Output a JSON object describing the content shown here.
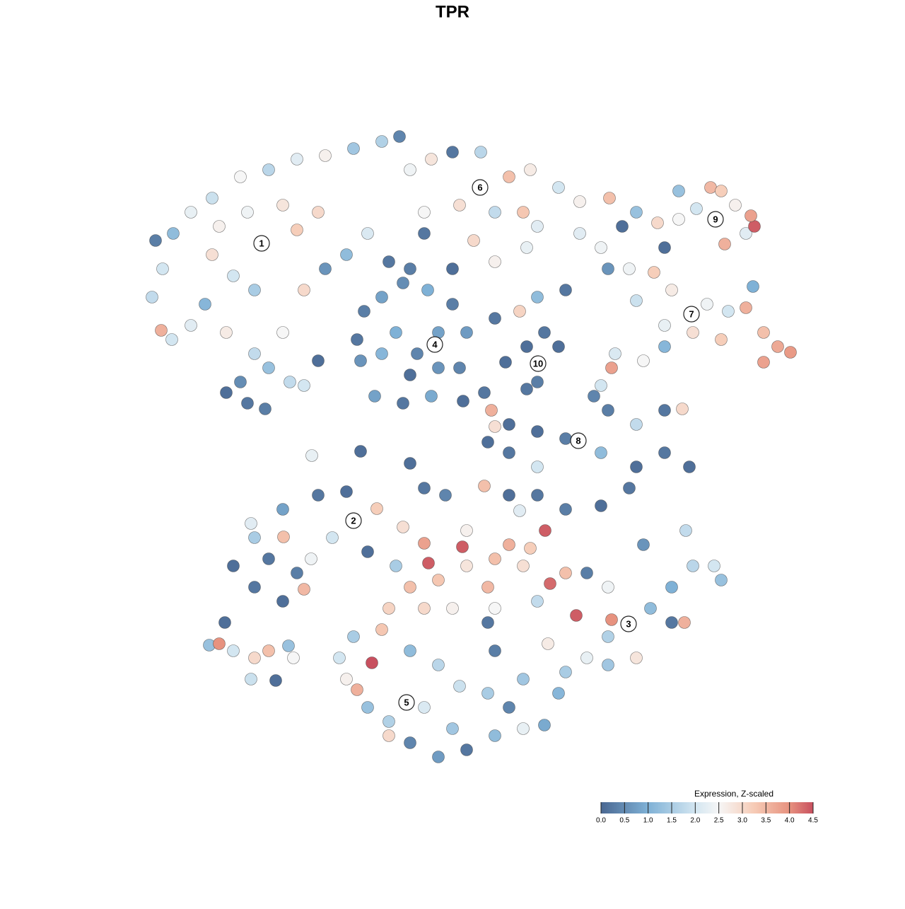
{
  "chart_data": {
    "type": "scatter",
    "title": "TPR",
    "x": [
      21.5,
      23.0,
      24.5,
      27.0,
      30.0,
      34.0,
      38.0,
      42.0,
      46.0,
      50.0,
      54.0,
      56.5,
      31.0,
      35.0,
      40.0,
      45.0,
      42.0,
      30.0,
      33.0,
      36.0,
      29.0,
      27.0,
      32.0,
      36.0,
      40.0,
      43.0,
      46.0,
      49.0,
      52.0,
      22.0,
      22.8,
      24.3,
      32.0,
      35.0,
      37.5,
      34.0,
      41.0,
      43.0,
      38.0,
      45.0,
      58,
      61,
      64,
      68,
      72,
      75,
      79,
      82,
      60,
      65,
      70,
      74,
      76,
      60,
      67,
      70,
      74.5,
      55,
      58,
      64,
      86.2,
      82,
      85,
      51.5,
      54,
      57,
      60.5,
      64,
      66,
      65,
      61,
      57,
      53,
      51,
      50.5,
      56,
      59,
      62,
      58,
      54,
      62,
      68.5,
      69.5,
      70,
      65.5,
      70,
      73.5,
      76,
      80,
      74.5,
      77,
      79,
      76,
      74.5,
      71.5,
      88,
      90,
      93,
      96,
      98.5,
      100.5,
      102,
      104,
      105.5,
      106.7,
      106.2,
      102.5,
      106.5,
      94,
      96,
      86,
      89,
      92.5,
      95,
      100,
      103,
      105.5,
      108,
      110,
      111.8,
      108,
      102,
      98,
      94,
      90,
      87,
      91,
      94,
      86.5,
      85,
      69,
      72,
      76,
      80,
      84,
      86,
      90,
      94,
      96.5,
      90,
      94,
      97.5,
      89,
      76,
      85,
      72,
      60,
      63,
      68.5,
      72,
      76,
      80,
      85,
      58,
      51,
      44.1,
      73.5,
      33,
      36,
      40,
      42,
      38,
      43,
      36,
      40,
      45,
      49,
      50,
      52,
      47,
      40.1,
      53.3,
      35.5,
      44,
      57,
      60,
      60.6,
      65.4,
      77.1,
      77.8,
      81.5,
      58,
      62,
      66,
      70,
      74,
      69,
      72,
      75,
      64,
      60,
      55,
      70,
      76,
      80,
      56,
      52.6,
      54,
      66,
      83,
      86,
      88.9,
      92,
      95,
      98,
      101,
      102,
      97,
      91,
      95,
      86,
      83,
      80,
      79,
      86,
      90,
      96.8,
      86.5,
      77.5,
      50,
      48,
      49,
      50.5,
      52,
      55,
      58,
      62,
      66,
      70,
      74,
      77,
      72,
      69,
      65,
      62,
      58,
      60,
      64,
      55,
      70,
      69,
      74,
      29.6,
      31,
      33,
      36,
      38,
      35.5,
      39,
      41.5,
      40.8,
      31.8
    ],
    "y": [
      67.0,
      71.0,
      76.0,
      79.0,
      81.0,
      84.0,
      85.0,
      86.5,
      87.0,
      88.0,
      89.0,
      89.7,
      77.0,
      79.0,
      80.0,
      79.0,
      76.5,
      73.0,
      70.0,
      68.0,
      66.0,
      63.0,
      62.0,
      59.0,
      62.0,
      68.0,
      71.0,
      73.0,
      76.0,
      75.0,
      62.3,
      61.0,
      53.5,
      52.0,
      51.2,
      55.0,
      55.0,
      54.5,
      57.0,
      58.0,
      85,
      86.5,
      87.5,
      87.5,
      84,
      85,
      82.5,
      80.5,
      79,
      80,
      79,
      79,
      77,
      76,
      75,
      72,
      74,
      72,
      71,
      71,
      81,
      76,
      74,
      65,
      67,
      69,
      68,
      66,
      62,
      57,
      53,
      52,
      53,
      58,
      61,
      62,
      59,
      62,
      56,
      59,
      57,
      53.5,
      51,
      48.7,
      52.3,
      64,
      65,
      67,
      68,
      60,
      62,
      60,
      55,
      54,
      57.8,
      77,
      79,
      77.5,
      78,
      79.5,
      82.5,
      82,
      80,
      76,
      77,
      78.5,
      74.5,
      68.5,
      74,
      82,
      71,
      71,
      70.5,
      68,
      66,
      65,
      65.5,
      62,
      60,
      59.2,
      57.8,
      61,
      62,
      63,
      66.5,
      59,
      58,
      60,
      57,
      54.5,
      46.5,
      45,
      48,
      47,
      53,
      51,
      49,
      51,
      51.2,
      43,
      45,
      43,
      40,
      43,
      45,
      49,
      40,
      39,
      40.3,
      39,
      39,
      37,
      37.5,
      43.5,
      45.2,
      44.6,
      36.8,
      29,
      26,
      24,
      28,
      30,
      25.7,
      33,
      37,
      39,
      39.5,
      35.4,
      31,
      33,
      33.1,
      37.1,
      35,
      30,
      34.5,
      32.2,
      29.4,
      31.7,
      34,
      26.5,
      22,
      26,
      27,
      29,
      30,
      29,
      26,
      32,
      31.5,
      23,
      23,
      23,
      23,
      24,
      28,
      29,
      15.3,
      20,
      34,
      28,
      26,
      20.8,
      23,
      26,
      29,
      29,
      27,
      34,
      32,
      21,
      19,
      16,
      14,
      11,
      15,
      16,
      21,
      21.4,
      18,
      19,
      16,
      13,
      11.5,
      9,
      7,
      4,
      2,
      3,
      5,
      6,
      6.5,
      9,
      11,
      12,
      15,
      17,
      9,
      6,
      5,
      17,
      21,
      13,
      17.8,
      18,
      17,
      16,
      17,
      13,
      12.8,
      16,
      17.7,
      21
    ],
    "values": [
      1.8,
      2.0,
      1.2,
      2.3,
      1.9,
      2.5,
      1.7,
      2.2,
      2.6,
      1.4,
      1.6,
      0.4,
      2.6,
      2.4,
      2.8,
      3.0,
      3.2,
      2.9,
      2.0,
      1.5,
      1.1,
      2.2,
      2.7,
      1.8,
      2.5,
      3.0,
      0.6,
      1.2,
      2.1,
      0.3,
      3.6,
      2.0,
      0.1,
      0.2,
      0.3,
      0.5,
      1.8,
      2.0,
      1.3,
      0.1,
      2.4,
      2.8,
      0.2,
      1.7,
      3.4,
      2.7,
      2.0,
      2.6,
      2.5,
      2.9,
      1.8,
      3.3,
      2.2,
      0.2,
      3.0,
      2.6,
      2.3,
      0.2,
      0.3,
      0.1,
      3.4,
      2.2,
      2.4,
      0.3,
      0.8,
      0.5,
      1.0,
      0.3,
      0.7,
      0.4,
      0.9,
      0.2,
      0.8,
      0.6,
      0.2,
      1.0,
      0.4,
      0.8,
      0.1,
      1.1,
      0.6,
      0.2,
      3.6,
      2.9,
      0.1,
      0.2,
      3.1,
      1.2,
      0.2,
      0.1,
      0.2,
      0.1,
      0.3,
      0.2,
      0.1,
      0.1,
      1.3,
      3.0,
      2.5,
      2.0,
      3.5,
      3.2,
      2.6,
      2.2,
      4.4,
      3.8,
      3.6,
      1.0,
      0.1,
      1.3,
      0.6,
      2.4,
      3.2,
      2.7,
      2.4,
      2.0,
      3.6,
      3.4,
      3.7,
      3.9,
      3.8,
      3.2,
      2.9,
      2.3,
      1.9,
      2.1,
      2.5,
      1.1,
      3.8,
      2.0,
      0.1,
      0.2,
      0.1,
      0.3,
      0.4,
      0.3,
      1.8,
      0.2,
      3.0,
      0.1,
      0.2,
      0.1,
      0.2,
      2.0,
      1.2,
      0.1,
      0.2,
      0.4,
      3.4,
      0.1,
      0.2,
      0.3,
      0.1,
      0.1,
      0.1,
      2.3,
      2.2,
      0.1,
      0.2,
      0.1,
      0.3,
      0.2,
      3.5,
      1.5,
      0.8,
      0.2,
      0.1,
      1.0,
      0.1,
      2.0,
      3.4,
      3.2,
      2.2,
      2.4,
      2.9,
      3.8,
      4.4,
      4.4,
      4.4,
      4.3,
      4.4,
      3.4,
      3.3,
      2.8,
      3.4,
      2.9,
      3.5,
      3.6,
      3.2,
      2.6,
      3.0,
      3.1,
      2.5,
      1.8,
      3.4,
      1.5,
      4.5,
      3.3,
      2.6,
      0.3,
      2.4,
      2.0,
      1.2,
      1.0,
      1.7,
      2.0,
      1.3,
      1.8,
      0.6,
      0.2,
      1.6,
      2.3,
      1.5,
      1.1,
      1.4,
      2.8,
      3.6,
      4.0,
      2.7,
      1.5,
      2.0,
      2.6,
      3.6,
      1.3,
      1.6,
      0.4,
      0.7,
      0.2,
      1.2,
      2.3,
      0.9,
      0.4,
      1.5,
      1.9,
      1.7,
      1.2,
      2.1,
      1.4,
      3.0,
      0.3,
      0.2,
      1.4,
      1.3,
      4.0,
      2.0,
      3.0,
      3.4,
      1.9,
      0.1,
      2.5,
      1.3,
      0.1
    ],
    "xlim": [
      20,
      113
    ],
    "ylim": [
      0,
      90.5
    ],
    "clusters": [
      {
        "label": "1",
        "x": 37,
        "y": 74.6
      },
      {
        "label": "2",
        "x": 50,
        "y": 35.4
      },
      {
        "label": "3",
        "x": 88.9,
        "y": 20.8
      },
      {
        "label": "4",
        "x": 61.5,
        "y": 60.3
      },
      {
        "label": "5",
        "x": 57.5,
        "y": 9.7
      },
      {
        "label": "6",
        "x": 67.9,
        "y": 82.5
      },
      {
        "label": "7",
        "x": 97.8,
        "y": 64.6
      },
      {
        "label": "8",
        "x": 81.8,
        "y": 46.7
      },
      {
        "label": "9",
        "x": 101.2,
        "y": 78
      },
      {
        "label": "10",
        "x": 76.1,
        "y": 57.6
      }
    ],
    "legend": {
      "title": "Expression, Z-scaled",
      "position": "bottom-right",
      "clim": [
        0,
        4.5
      ],
      "ticks": [
        {
          "value": 0,
          "label": "0.0"
        },
        0.5,
        {
          "value": 1,
          "label": "1.0"
        },
        1.5,
        {
          "value": 2,
          "label": "2.0"
        },
        2.5,
        {
          "value": 3,
          "label": "3.0"
        },
        3.5,
        {
          "value": 4,
          "label": "4.0"
        },
        4.5
      ]
    },
    "colorscale": [
      [
        0,
        "#4a6892"
      ],
      [
        1,
        "#7fb1d6"
      ],
      [
        2,
        "#d3e6f1"
      ],
      [
        2.5,
        "#f6f6f6"
      ],
      [
        3.25,
        "#f6cbb6"
      ],
      [
        4,
        "#e7927f"
      ],
      [
        4.5,
        "#c8505f"
      ]
    ]
  }
}
